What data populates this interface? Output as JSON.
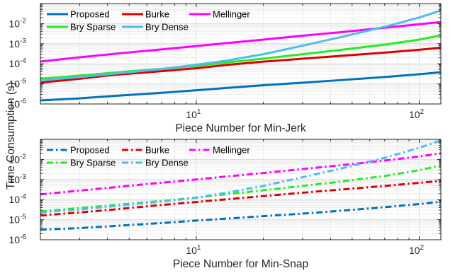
{
  "ylabel": "Time Consumption (s)",
  "chart_data": [
    {
      "type": "line",
      "xscale": "log",
      "yscale": "log",
      "xlim": [
        2,
        125
      ],
      "ylim": [
        1e-06,
        0.1
      ],
      "xlabel": "Piece Number for Min-Jerk",
      "xticks": [
        {
          "v": 10,
          "base": "10",
          "exp": "1"
        },
        {
          "v": 100,
          "base": "10",
          "exp": "2"
        }
      ],
      "yticks": [
        {
          "v": 1e-06,
          "base": "10",
          "exp": "-6"
        },
        {
          "v": 1e-05,
          "base": "10",
          "exp": "-5"
        },
        {
          "v": 0.0001,
          "base": "10",
          "exp": "-4"
        },
        {
          "v": 0.001,
          "base": "10",
          "exp": "-3"
        },
        {
          "v": 0.01,
          "base": "10",
          "exp": "-2"
        }
      ],
      "grid": true,
      "legend_position": "top-left",
      "line_style": "solid",
      "series": [
        {
          "name": "Proposed",
          "color": "#0072BD",
          "x": [
            2,
            3,
            4,
            5,
            7,
            10,
            14,
            20,
            30,
            45,
            70,
            100,
            125
          ],
          "y": [
            1.5e-06,
            1.9e-06,
            2.4e-06,
            2.8e-06,
            3.6e-06,
            4.8e-06,
            6.4e-06,
            8.6e-06,
            1.15e-05,
            1.55e-05,
            2.2e-05,
            3e-05,
            3.8e-05
          ]
        },
        {
          "name": "Burke",
          "color": "#E00000",
          "x": [
            2,
            3,
            4,
            5,
            7,
            10,
            14,
            20,
            30,
            45,
            70,
            100,
            125
          ],
          "y": [
            1.15e-05,
            1.8e-05,
            2.6e-05,
            3.2e-05,
            4.3e-05,
            6e-05,
            9e-05,
            0.000128,
            0.00018,
            0.00025,
            0.00036,
            0.0005,
            0.00063
          ]
        },
        {
          "name": "Mellinger",
          "color": "#FF00FF",
          "x": [
            2,
            3,
            4,
            5,
            7,
            10,
            14,
            20,
            30,
            45,
            70,
            100,
            125
          ],
          "y": [
            0.00013,
            0.00021,
            0.00029,
            0.00037,
            0.00052,
            0.00076,
            0.0011,
            0.0016,
            0.0025,
            0.0038,
            0.0062,
            0.0093,
            0.012
          ]
        },
        {
          "name": "Bry Sparse",
          "color": "#22EE22",
          "x": [
            2,
            3,
            4,
            5,
            7,
            10,
            14,
            20,
            30,
            45,
            70,
            100,
            125
          ],
          "y": [
            1.8e-05,
            2.6e-05,
            3.4e-05,
            4.2e-05,
            5.6e-05,
            7.9e-05,
            0.00012,
            0.00018,
            0.0003,
            0.0005,
            0.0009,
            0.0016,
            0.0026
          ]
        },
        {
          "name": "Bry Dense",
          "color": "#4DBEEE",
          "x": [
            2,
            3,
            4,
            5,
            7,
            10,
            14,
            20,
            30,
            45,
            70,
            100,
            125
          ],
          "y": [
            1.5e-05,
            2.2e-05,
            3e-05,
            3.8e-05,
            5.5e-05,
            9e-05,
            0.00015,
            0.0003,
            0.0008,
            0.0022,
            0.007,
            0.02,
            0.045
          ]
        }
      ]
    },
    {
      "type": "line",
      "xscale": "log",
      "yscale": "log",
      "xlim": [
        2,
        125
      ],
      "ylim": [
        1e-06,
        0.1
      ],
      "xlabel": "Piece Number for Min-Snap",
      "xticks": [
        {
          "v": 10,
          "base": "10",
          "exp": "1"
        },
        {
          "v": 100,
          "base": "10",
          "exp": "2"
        }
      ],
      "yticks": [
        {
          "v": 1e-06,
          "base": "10",
          "exp": "-6"
        },
        {
          "v": 1e-05,
          "base": "10",
          "exp": "-5"
        },
        {
          "v": 0.0001,
          "base": "10",
          "exp": "-4"
        },
        {
          "v": 0.001,
          "base": "10",
          "exp": "-3"
        },
        {
          "v": 0.01,
          "base": "10",
          "exp": "-2"
        }
      ],
      "grid": true,
      "legend_position": "top-left",
      "line_style": "dash-dot",
      "series": [
        {
          "name": "Proposed",
          "color": "#0072BD",
          "x": [
            2,
            3,
            4,
            5,
            7,
            10,
            14,
            20,
            30,
            45,
            70,
            100,
            125
          ],
          "y": [
            3.2e-06,
            3.8e-06,
            4.6e-06,
            5.4e-06,
            6.8e-06,
            9e-06,
            1.15e-05,
            1.5e-05,
            2e-05,
            2.8e-05,
            4.2e-05,
            6e-05,
            7.8e-05
          ]
        },
        {
          "name": "Burke",
          "color": "#E00000",
          "x": [
            2,
            3,
            4,
            5,
            7,
            10,
            14,
            20,
            30,
            45,
            70,
            100,
            125
          ],
          "y": [
            1.6e-05,
            2.3e-05,
            3e-05,
            3.8e-05,
            5.4e-05,
            7.6e-05,
            0.000106,
            0.00015,
            0.00022,
            0.00032,
            0.00048,
            0.00068,
            0.00086
          ]
        },
        {
          "name": "Mellinger",
          "color": "#FF00FF",
          "x": [
            2,
            3,
            4,
            5,
            7,
            10,
            14,
            20,
            30,
            45,
            70,
            100,
            125
          ],
          "y": [
            0.00018,
            0.00028,
            0.00038,
            0.00049,
            0.00069,
            0.001,
            0.00145,
            0.0021,
            0.0033,
            0.0052,
            0.0088,
            0.014,
            0.02
          ]
        },
        {
          "name": "Bry Sparse",
          "color": "#22EE22",
          "x": [
            2,
            3,
            4,
            5,
            7,
            10,
            14,
            20,
            30,
            45,
            70,
            100,
            125
          ],
          "y": [
            2.6e-05,
            3.8e-05,
            5e-05,
            6.2e-05,
            8.6e-05,
            0.000125,
            0.00019,
            0.00029,
            0.00048,
            0.0008,
            0.0015,
            0.0029,
            0.005
          ]
        },
        {
          "name": "Bry Dense",
          "color": "#4DBEEE",
          "x": [
            2,
            3,
            4,
            5,
            7,
            10,
            14,
            20,
            30,
            45,
            70,
            100,
            125
          ],
          "y": [
            2.3e-05,
            3.2e-05,
            4.4e-05,
            5.6e-05,
            8e-05,
            0.000125,
            0.00023,
            0.00048,
            0.0013,
            0.0036,
            0.012,
            0.038,
            0.088
          ]
        }
      ]
    }
  ]
}
